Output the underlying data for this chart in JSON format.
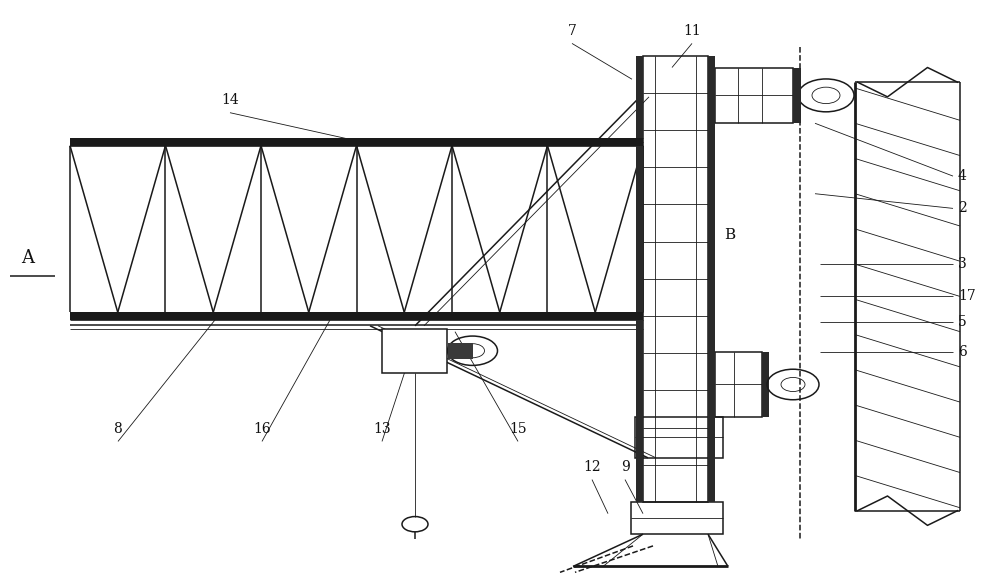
{
  "bg_color": "#ffffff",
  "line_color": "#1a1a1a",
  "label_color": "#111111",
  "fig_width": 10.0,
  "fig_height": 5.87
}
